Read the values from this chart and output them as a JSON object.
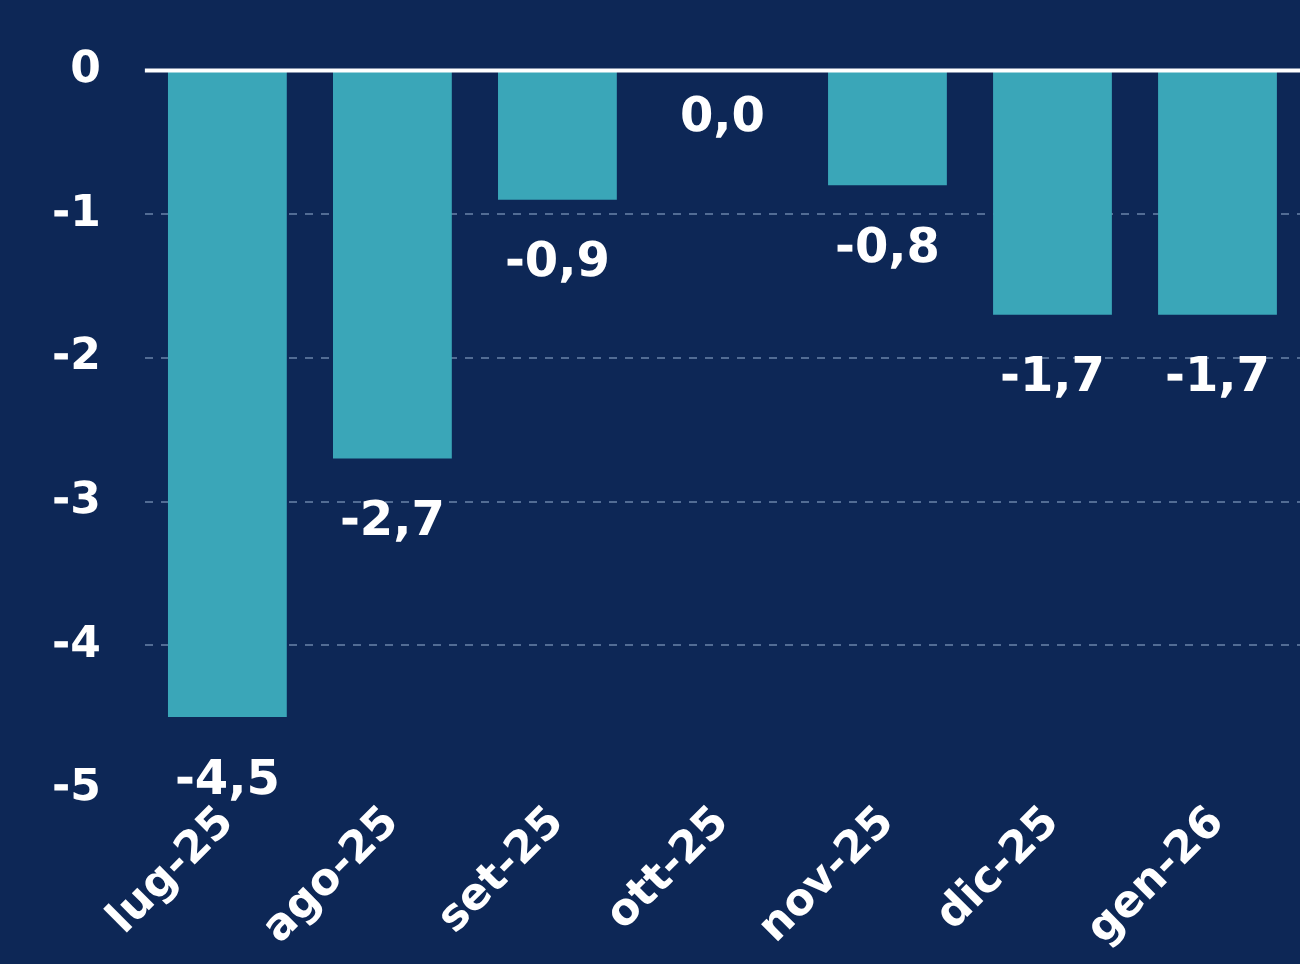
{
  "chart_data": {
    "type": "bar",
    "categories": [
      "lug-25",
      "ago-25",
      "set-25",
      "ott-25",
      "nov-25",
      "dic-25",
      "gen-26"
    ],
    "values": [
      -4.5,
      -2.7,
      -0.9,
      0,
      -0.8,
      -1.7,
      -1.7
    ],
    "value_labels": [
      "-4,5",
      "-2,7",
      "-0,9",
      "0,0",
      "-0,8",
      "-1,7",
      "-1,7"
    ],
    "color": "#3aa6b8",
    "ylim": [
      -5,
      0
    ],
    "yticks": [
      0,
      -1,
      -2,
      -3,
      -4,
      -5
    ],
    "grid": "y",
    "legend": false
  }
}
